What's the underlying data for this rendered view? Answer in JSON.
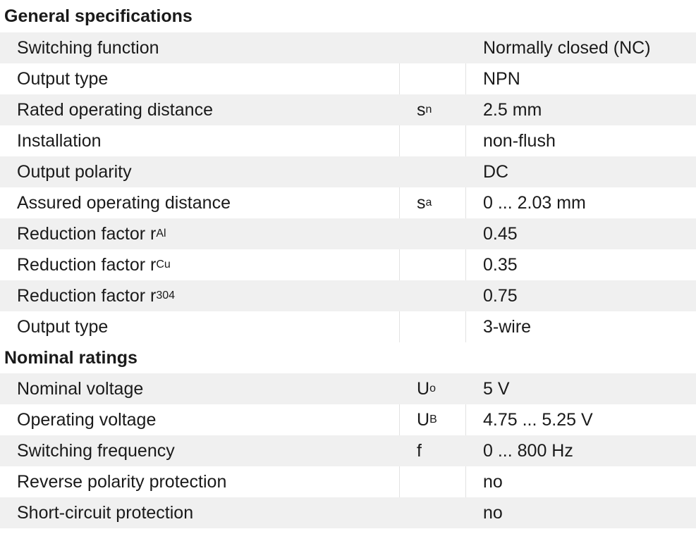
{
  "sections": [
    {
      "title": "General specifications",
      "rows": [
        {
          "label": "Switching function",
          "label_sub": "",
          "symbol": "",
          "symbol_sub": "",
          "value": "Normally closed (NC)"
        },
        {
          "label": "Output type",
          "label_sub": "",
          "symbol": "",
          "symbol_sub": "",
          "value": "NPN"
        },
        {
          "label": "Rated operating distance",
          "label_sub": "",
          "symbol": "s",
          "symbol_sub": "n",
          "value": "2.5 mm"
        },
        {
          "label": "Installation",
          "label_sub": "",
          "symbol": "",
          "symbol_sub": "",
          "value": "non-flush"
        },
        {
          "label": "Output polarity",
          "label_sub": "",
          "symbol": "",
          "symbol_sub": "",
          "value": "DC"
        },
        {
          "label": "Assured operating distance",
          "label_sub": "",
          "symbol": "s",
          "symbol_sub": "a",
          "value": "0 ... 2.03 mm"
        },
        {
          "label": "Reduction factor r",
          "label_sub": "Al",
          "symbol": "",
          "symbol_sub": "",
          "value": "0.45"
        },
        {
          "label": "Reduction factor r",
          "label_sub": "Cu",
          "symbol": "",
          "symbol_sub": "",
          "value": "0.35"
        },
        {
          "label": "Reduction factor r",
          "label_sub": "304",
          "symbol": "",
          "symbol_sub": "",
          "value": "0.75"
        },
        {
          "label": "Output type",
          "label_sub": "",
          "symbol": "",
          "symbol_sub": "",
          "value": "3-wire"
        }
      ]
    },
    {
      "title": "Nominal ratings",
      "rows": [
        {
          "label": "Nominal voltage",
          "label_sub": "",
          "symbol": "U",
          "symbol_sub": "o",
          "value": "5 V"
        },
        {
          "label": "Operating voltage",
          "label_sub": "",
          "symbol": "U",
          "symbol_sub": "B",
          "value": "4.75 ... 5.25 V"
        },
        {
          "label": "Switching frequency",
          "label_sub": "",
          "symbol": "f",
          "symbol_sub": "",
          "value": "0 ... 800 Hz"
        },
        {
          "label": "Reverse polarity protection",
          "label_sub": "",
          "symbol": "",
          "symbol_sub": "",
          "value": "no"
        },
        {
          "label": "Short-circuit protection",
          "label_sub": "",
          "symbol": "",
          "symbol_sub": "",
          "value": "no"
        }
      ]
    }
  ]
}
